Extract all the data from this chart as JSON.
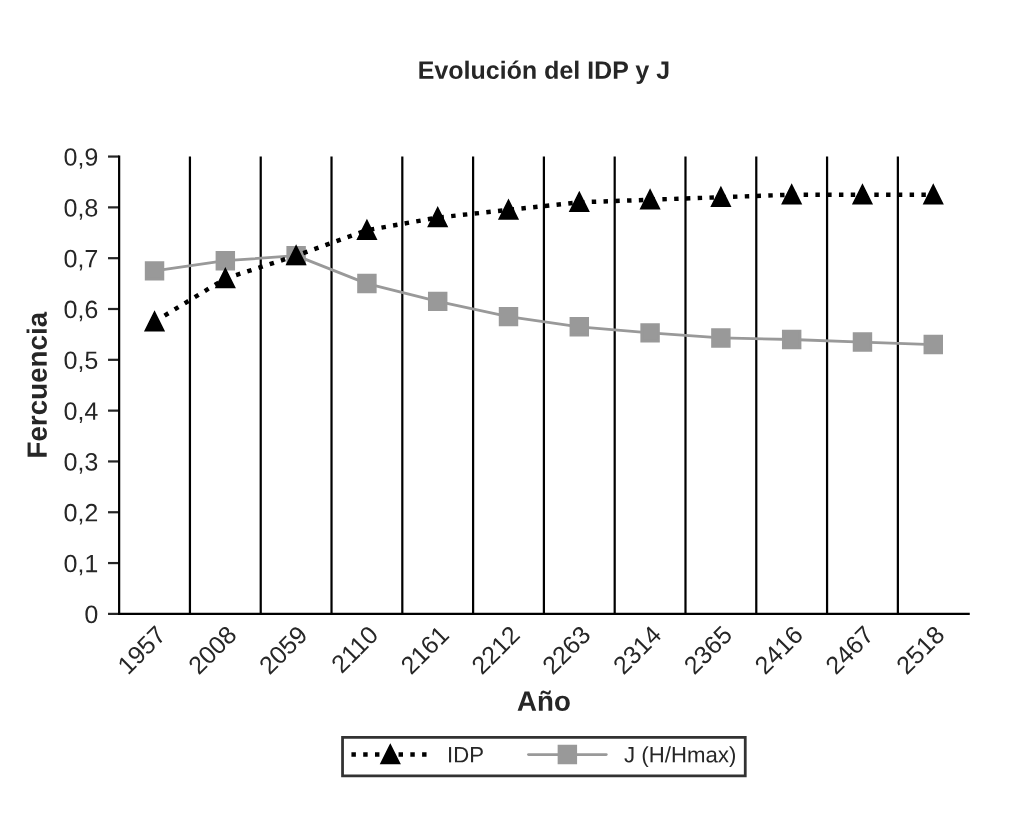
{
  "chart_data": {
    "type": "line",
    "title": "Evolución del IDP y J",
    "xlabel": "Año",
    "ylabel": "Fercuencia",
    "categories": [
      "1957",
      "2008",
      "2059",
      "2110",
      "2161",
      "2212",
      "2263",
      "2314",
      "2365",
      "2416",
      "2467",
      "2518"
    ],
    "series": [
      {
        "name": "IDP",
        "color": "#000000",
        "marker": "triangle",
        "line_style": "dotted",
        "values": [
          0.575,
          0.66,
          0.705,
          0.755,
          0.78,
          0.795,
          0.81,
          0.815,
          0.82,
          0.825,
          0.825,
          0.825
        ]
      },
      {
        "name": "J (H/Hmax)",
        "color": "#999999",
        "marker": "square",
        "line_style": "solid",
        "values": [
          0.675,
          0.695,
          0.705,
          0.65,
          0.615,
          0.585,
          0.565,
          0.553,
          0.543,
          0.54,
          0.535,
          0.53
        ]
      }
    ],
    "ylim": [
      0,
      0.9
    ],
    "yticks": [
      {
        "value": 0,
        "label": "0"
      },
      {
        "value": 0.1,
        "label": "0,1"
      },
      {
        "value": 0.2,
        "label": "0,2"
      },
      {
        "value": 0.3,
        "label": "0,3"
      },
      {
        "value": 0.4,
        "label": "0,4"
      },
      {
        "value": 0.5,
        "label": "0,5"
      },
      {
        "value": 0.6,
        "label": "0,6"
      },
      {
        "value": 0.7,
        "label": "0,7"
      },
      {
        "value": 0.8,
        "label": "0,8"
      },
      {
        "value": 0.9,
        "label": "0,9"
      }
    ],
    "grid": "x",
    "legend": "bottom"
  }
}
